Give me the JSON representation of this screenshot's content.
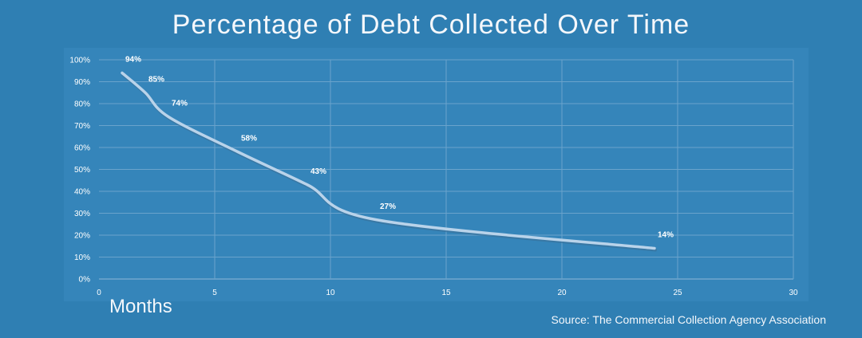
{
  "chart_data": {
    "type": "line",
    "title": "Percentage of Debt Collected Over Time",
    "xlabel": "Months",
    "ylabel": "",
    "source": "Source: The Commercial Collection Agency Association",
    "x": [
      1,
      2,
      3,
      6,
      9,
      12,
      24
    ],
    "values": [
      94,
      85,
      74,
      58,
      43,
      27,
      14
    ],
    "data_labels": [
      "94%",
      "85%",
      "74%",
      "58%",
      "43%",
      "27%",
      "14%"
    ],
    "xlim": [
      0,
      30
    ],
    "ylim": [
      0,
      100
    ],
    "x_ticks": [
      0,
      5,
      10,
      15,
      20,
      25,
      30
    ],
    "x_tick_labels": [
      "0",
      "5",
      "10",
      "15",
      "20",
      "25",
      "30"
    ],
    "y_ticks": [
      0,
      10,
      20,
      30,
      40,
      50,
      60,
      70,
      80,
      90,
      100
    ],
    "y_tick_labels": [
      "0%",
      "10%",
      "20%",
      "30%",
      "40%",
      "50%",
      "60%",
      "70%",
      "80%",
      "90%",
      "100%"
    ],
    "grid": true,
    "line_color": "#b9d3ea"
  }
}
